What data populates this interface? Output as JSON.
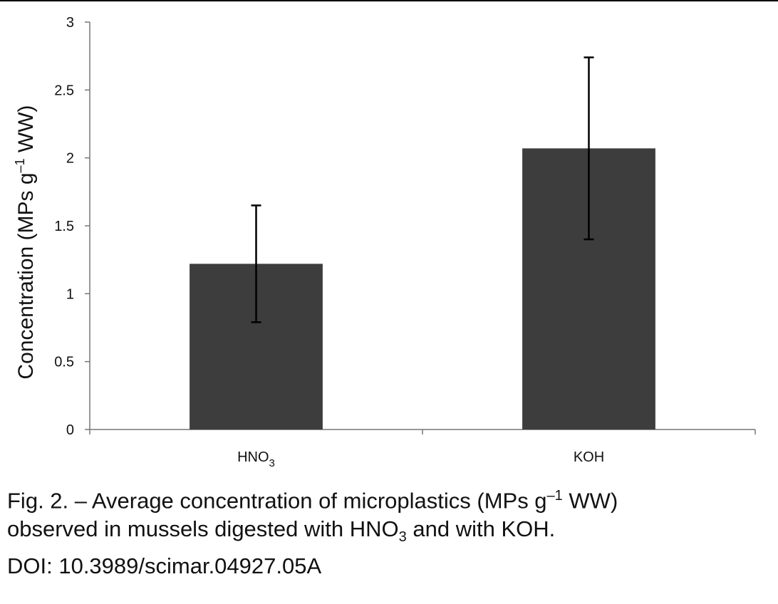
{
  "chart_data": {
    "type": "bar",
    "categories": [
      "HNO3",
      "KOH"
    ],
    "category_labels": [
      {
        "main": "HNO",
        "sub": "3"
      },
      {
        "main": "KOH",
        "sub": ""
      }
    ],
    "values": [
      1.22,
      2.07
    ],
    "error_bars": [
      {
        "low": 0.79,
        "high": 1.65
      },
      {
        "low": 1.4,
        "high": 2.74
      }
    ],
    "ylabel": {
      "main": "Concentration (MPs g",
      "sup": "–1",
      "end": " WW)"
    },
    "ylim": [
      0,
      3
    ],
    "yticks": [
      0,
      0.5,
      1,
      1.5,
      2,
      2.5,
      3
    ],
    "ytick_labels": [
      "0",
      "0.5",
      "1",
      "1.5",
      "2",
      "2.5",
      "3"
    ],
    "grid": false,
    "colors": {
      "bar": "#3d3d3d",
      "axis": "#777777",
      "error": "#000000"
    }
  },
  "caption": {
    "line1_a": "Fig. 2. – Average concentration of microplastics (MPs g",
    "line1_sup": "–1",
    "line1_b": " WW)",
    "line2_a": "observed in mussels digested with HNO",
    "line2_sub": "3",
    "line2_b": " and with KOH.",
    "line3": "DOI: 10.3989/scimar.04927.05A"
  }
}
